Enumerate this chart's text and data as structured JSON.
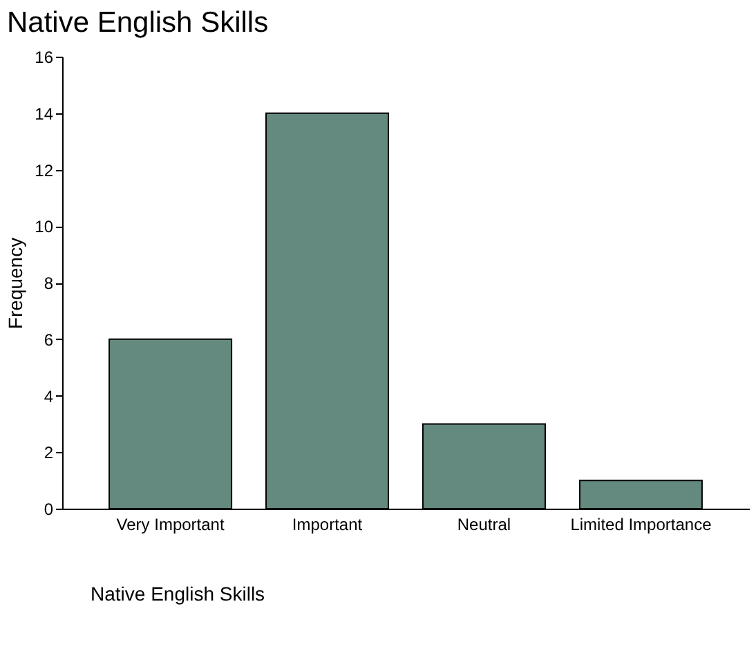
{
  "chart_data": {
    "type": "bar",
    "title": "Native English Skills",
    "xlabel": "Native English Skills",
    "ylabel": "Frequency",
    "categories": [
      "Very Important",
      "Important",
      "Neutral",
      "Limited Importance"
    ],
    "values": [
      6,
      14,
      3,
      1
    ],
    "color": "#648a80",
    "ylim": [
      0,
      16
    ],
    "yticks": [
      0,
      2,
      4,
      6,
      8,
      10,
      12,
      14,
      16
    ],
    "grid": false
  }
}
